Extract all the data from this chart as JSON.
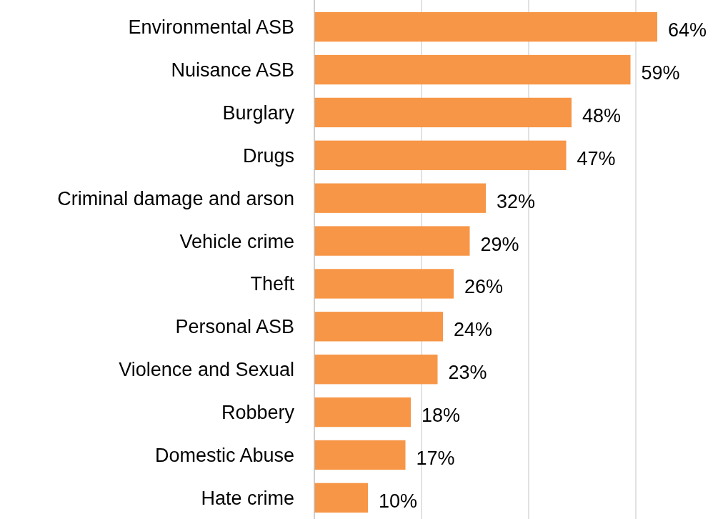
{
  "chart_data": {
    "type": "bar",
    "orientation": "horizontal",
    "categories": [
      "Environmental ASB",
      "Nuisance ASB",
      "Burglary",
      "Drugs",
      "Criminal damage and arson",
      "Vehicle crime",
      "Theft",
      "Personal ASB",
      "Violence and Sexual",
      "Robbery",
      "Domestic Abuse",
      "Hate crime"
    ],
    "values": [
      64,
      59,
      48,
      47,
      32,
      29,
      26,
      24,
      23,
      18,
      17,
      10
    ],
    "value_labels": [
      "64%",
      "59%",
      "48%",
      "47%",
      "32%",
      "29%",
      "26%",
      "24%",
      "23%",
      "18%",
      "17%",
      "10%"
    ],
    "color": "#f79646",
    "xticks": [
      {
        "value": 0,
        "label": null
      },
      {
        "value": 20,
        "label": null
      },
      {
        "value": 40,
        "label": null
      },
      {
        "value": 60,
        "label": null
      }
    ],
    "grid": "x",
    "tick_labels": "y"
  }
}
